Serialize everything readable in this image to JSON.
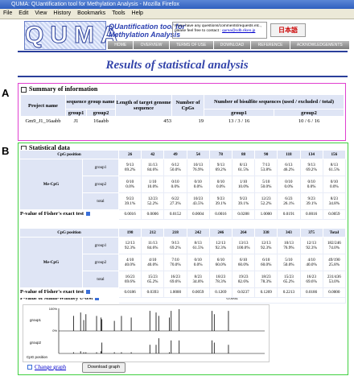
{
  "window_title": "QUMA: QUantification tool for Methylation Analysis - Mozilla Firefox",
  "menu": [
    "File",
    "Edit",
    "View",
    "History",
    "Bookmarks",
    "Tools",
    "Help"
  ],
  "header": {
    "logo": "QUMA",
    "tool_name_line1": "QUantification tool for",
    "tool_name_line2": "Methylation Analysis",
    "contact_text": "If you have any questions/comments/requests etc., please feel free to contact :",
    "contact_email": "quma@cdb.riken.jp",
    "language_button": "日本語",
    "nav": [
      "HOME",
      "OVERVIEW",
      "TERMS OF USE",
      "DOWNLOAD",
      "REFERENCE",
      "ACKNOWLEDGEMENTS"
    ]
  },
  "page_title": "Results of statistical analysis",
  "section_labels": [
    "A",
    "B"
  ],
  "summary": {
    "title": "Summary of information",
    "headers": {
      "project": "Project name",
      "group_name": "sequence group name",
      "group1": "group1",
      "group2": "group2",
      "length": "Length of target genome sequence",
      "cpgs": "Number of CpGs",
      "bisulfite": "Number of bisulfite sequences (used / excluded / total)"
    },
    "row": [
      "Gm9_J1_16aabb",
      "J1",
      "16aabb",
      "453",
      "19",
      "13 / 3 / 16",
      "10 / 6 / 16"
    ]
  },
  "statistics": {
    "title": "Statistical data",
    "tables": [
      {
        "position_label": "CpG position",
        "positions": [
          "26",
          "42",
          "49",
          "54",
          "78",
          "88",
          "90",
          "118",
          "134",
          "156"
        ],
        "group_label": "Me-CpG",
        "rows": [
          {
            "name": "group1",
            "counts": [
              "9/13",
              "11/13",
              "6/12",
              "10/13",
              "9/13",
              "8/13",
              "7/13",
              "6/13",
              "9/13",
              "8/13"
            ],
            "percents": [
              "69.2%",
              "84.6%",
              "50.0%",
              "76.9%",
              "69.2%",
              "61.5%",
              "53.8%",
              "46.2%",
              "69.2%",
              "61.5%"
            ]
          },
          {
            "name": "group2",
            "counts": [
              "0/10",
              "1/10",
              "0/10",
              "0/10",
              "0/10",
              "1/10",
              "5/10",
              "0/10",
              "0/10",
              "0/10"
            ],
            "percents": [
              "0.0%",
              "10.0%",
              "0.0%",
              "0.0%",
              "0.0%",
              "10.0%",
              "50.0%",
              "0.0%",
              "0.0%",
              "0.0%"
            ]
          },
          {
            "name": "total",
            "counts": [
              "9/23",
              "12/23",
              "6/22",
              "10/23",
              "9/23",
              "9/23",
              "12/23",
              "6/23",
              "9/23",
              "8/23"
            ],
            "percents": [
              "39.1%",
              "52.2%",
              "27.3%",
              "43.5%",
              "39.1%",
              "39.1%",
              "52.2%",
              "26.1%",
              "39.1%",
              "34.8%"
            ]
          }
        ],
        "pvalue_label": "P-value of Fisher's exact test",
        "pvalues": [
          "0.0016",
          "0.0006",
          "0.0152",
          "0.0004",
          "0.0016",
          "0.0288",
          "1.0000",
          "0.0191",
          "0.0016",
          "0.0059"
        ]
      },
      {
        "position_label": "CpG position",
        "positions": [
          "198",
          "212",
          "218",
          "242",
          "246",
          "264",
          "338",
          "343",
          "375",
          "Total"
        ],
        "group_label": "Me-CpG",
        "rows": [
          {
            "name": "group1",
            "counts": [
              "12/13",
              "11/13",
              "9/13",
              "8/13",
              "12/13",
              "13/13",
              "12/13",
              "10/13",
              "12/13",
              "182/246"
            ],
            "percents": [
              "92.3%",
              "84.6%",
              "69.2%",
              "61.5%",
              "92.3%",
              "100.0%",
              "92.3%",
              "76.9%",
              "92.3%",
              "74.0%"
            ]
          },
          {
            "name": "group2",
            "counts": [
              "4/10",
              "4/10",
              "7/10",
              "0/10",
              "6/10",
              "6/10",
              "6/10",
              "5/10",
              "4/10",
              "49/190"
            ],
            "percents": [
              "40.0%",
              "40.0%",
              "70.0%",
              "0.0%",
              "60.0%",
              "60.0%",
              "60.0%",
              "50.0%",
              "40.0%",
              "25.8%"
            ]
          },
          {
            "name": "total",
            "counts": [
              "16/23",
              "15/23",
              "16/23",
              "8/23",
              "18/23",
              "19/23",
              "18/23",
              "15/23",
              "16/23",
              "231/436"
            ],
            "percents": [
              "69.6%",
              "65.2%",
              "69.6%",
              "34.8%",
              "78.3%",
              "82.6%",
              "78.3%",
              "65.2%",
              "69.6%",
              "53.0%"
            ]
          }
        ],
        "pvalue_label": "P-value of Fisher's exact test",
        "pvalues": [
          "0.0186",
          "0.0393",
          "1.0000",
          "0.0059",
          "0.1269",
          "0.0237",
          "0.1269",
          "0.2213",
          "0.0186",
          "0.0000"
        ]
      }
    ],
    "mann_whitney_label": "P-value of Mann-Whitney U-test",
    "mann_whitney_value": "0.0004",
    "graph": {
      "top_label": "100%",
      "bottom_label": "0%",
      "group1": "group1",
      "group2": "group2",
      "axis_label": "CpG position"
    },
    "change_graph": "Change graph",
    "download_graph": "Download graph"
  }
}
